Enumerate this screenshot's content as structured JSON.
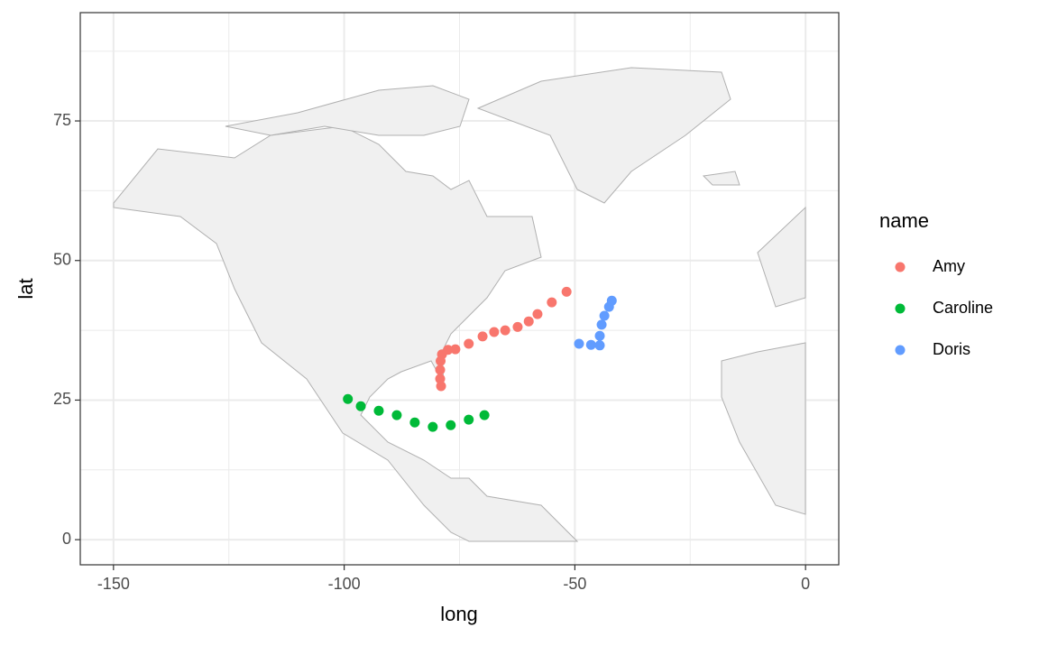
{
  "chart_data": {
    "type": "scatter",
    "x_label": "long",
    "y_label": "lat",
    "legend_title": "name",
    "xlim": [
      -157.2,
      7.2
    ],
    "ylim": [
      -4.5,
      94.4
    ],
    "xticks": [
      -150,
      -100,
      -50,
      0
    ],
    "yticks": [
      0,
      25,
      50,
      75
    ],
    "xminor": [
      -125,
      -75,
      -25
    ],
    "yminor": [
      12.5,
      37.5,
      62.5,
      87.5
    ],
    "grid": true,
    "legend": "right",
    "series": [
      {
        "name": "Amy",
        "color": "#F8766D",
        "x": [
          -79,
          -79.2,
          -79.2,
          -79.1,
          -78.8,
          -77.5,
          -75.9,
          -73,
          -70,
          -67.5,
          -65.1,
          -62.4,
          -60,
          -58.1,
          -55,
          -51.8
        ],
        "values": [
          27.5,
          28.8,
          30.4,
          32,
          33.2,
          34,
          34.1,
          35.1,
          36.4,
          37.2,
          37.5,
          38.1,
          39.1,
          40.4,
          42.5,
          44.4
        ]
      },
      {
        "name": "Caroline",
        "color": "#00BA38",
        "x": [
          -99.2,
          -96.4,
          -92.5,
          -88.6,
          -84.7,
          -80.8,
          -76.9,
          -73,
          -69.6
        ],
        "values": [
          25.2,
          23.9,
          23.1,
          22.3,
          21,
          20.2,
          20.5,
          21.5,
          22.3
        ]
      },
      {
        "name": "Doris",
        "color": "#619CFF",
        "x": [
          -49.1,
          -46.5,
          -44.6,
          -44.6,
          -44.2,
          -43.6,
          -42.6,
          -42
        ],
        "values": [
          35.1,
          34.9,
          34.8,
          36.5,
          38.5,
          40.1,
          41.7,
          42.8
        ]
      }
    ]
  }
}
